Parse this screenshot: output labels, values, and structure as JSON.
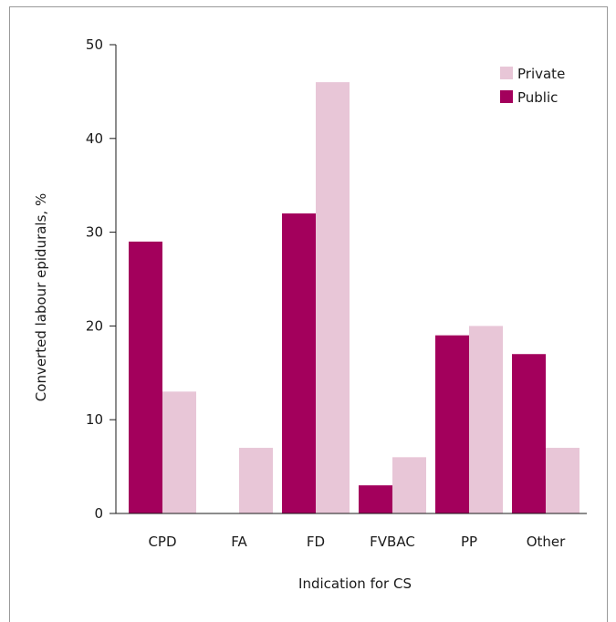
{
  "chart_data": {
    "type": "bar",
    "categories": [
      "CPD",
      "FA",
      "FD",
      "FVBAC",
      "PP",
      "Other"
    ],
    "series": [
      {
        "name": "Public",
        "values": [
          29,
          0,
          32,
          3,
          19,
          17
        ],
        "color": "#a3005c"
      },
      {
        "name": "Private",
        "values": [
          13,
          7,
          46,
          6,
          20,
          7
        ],
        "color": "#e8c6d7"
      }
    ],
    "xlabel": "Indication for CS",
    "ylabel": "Converted labour epidurals, %",
    "ylim": [
      0,
      50
    ],
    "yticks": [
      0,
      10,
      20,
      30,
      40,
      50
    ],
    "grid": false,
    "legend": {
      "position": "top-right",
      "order": [
        "Private",
        "Public"
      ]
    }
  }
}
